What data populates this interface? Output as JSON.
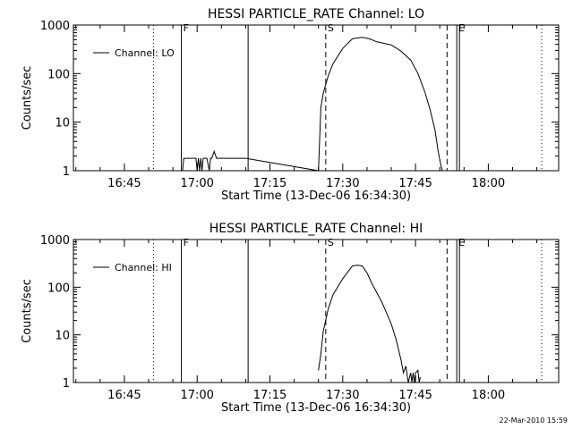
{
  "timestamp": "22-Mar-2010 15:59",
  "chart_data": [
    {
      "type": "line",
      "title": "HESSI PARTICLE_RATE Channel: LO",
      "xlabel": "Start Time (13-Dec-06 16:34:30)",
      "ylabel": "Counts/sec",
      "yscale": "log",
      "ylim": [
        1,
        1000
      ],
      "xlim": [
        "16:34:30",
        "18:14:30"
      ],
      "x_ticks": [
        "16:45",
        "17:00",
        "17:15",
        "17:30",
        "17:45",
        "18:00"
      ],
      "y_ticks": [
        "1",
        "10",
        "100",
        "1000"
      ],
      "legend": "top-left",
      "grid": false,
      "series": [
        {
          "name": "Channel: LO",
          "x": [
            "16:57:00",
            "16:57:15",
            "16:58:00",
            "16:59:00",
            "16:59:45",
            "17:00:00",
            "17:00:15",
            "17:00:30",
            "17:00:45",
            "17:01:00",
            "17:01:15",
            "17:01:30",
            "17:02:00",
            "17:02:30",
            "17:02:45",
            "17:03:00",
            "17:03:30",
            "17:04:00",
            "17:05:00",
            "17:10:00",
            "17:25:00",
            "17:25:30",
            "17:26:00",
            "17:27:00",
            "17:28:00",
            "17:30:00",
            "17:32:00",
            "17:34:00",
            "17:35:30",
            "17:37:00",
            "17:38:30",
            "17:40:00",
            "17:42:00",
            "17:44:00",
            "17:45:30",
            "17:47:00",
            "17:48:00",
            "17:49:00",
            "17:49:40",
            "17:50:10",
            "17:50:30"
          ],
          "values": [
            1,
            1.8,
            1.8,
            1.8,
            1.8,
            1,
            1.8,
            1,
            1.8,
            1,
            1.8,
            1.8,
            1.8,
            1,
            1.8,
            1.8,
            2.5,
            1.8,
            1.8,
            1.8,
            1,
            20,
            40,
            90,
            160,
            330,
            520,
            560,
            520,
            450,
            420,
            390,
            290,
            190,
            100,
            40,
            18,
            7,
            2.5,
            1.4,
            1
          ],
          "color": "#000000"
        }
      ],
      "markers": [
        {
          "label": "F",
          "time": "16:56:45",
          "style": "solid"
        },
        {
          "label": "",
          "time": "17:10:30",
          "style": "solid"
        },
        {
          "label": "",
          "time": "16:51:00",
          "style": "dotted"
        },
        {
          "label": "S",
          "time": "17:26:30",
          "style": "dashed"
        },
        {
          "label": "",
          "time": "17:51:30",
          "style": "dashed"
        },
        {
          "label": "E",
          "time": "17:53:30",
          "style": "double"
        },
        {
          "label": "",
          "time": "18:11:00",
          "style": "dotted"
        }
      ]
    },
    {
      "type": "line",
      "title": "HESSI PARTICLE_RATE Channel: HI",
      "xlabel": "Start Time (13-Dec-06 16:34:30)",
      "ylabel": "Counts/sec",
      "yscale": "log",
      "ylim": [
        1,
        1000
      ],
      "xlim": [
        "16:34:30",
        "18:14:30"
      ],
      "x_ticks": [
        "16:45",
        "17:00",
        "17:15",
        "17:30",
        "17:45",
        "18:00"
      ],
      "y_ticks": [
        "1",
        "10",
        "100",
        "1000"
      ],
      "legend": "top-left",
      "grid": false,
      "series": [
        {
          "name": "Channel: HI",
          "x": [
            "17:25:00",
            "17:25:30",
            "17:26:00",
            "17:27:00",
            "17:28:00",
            "17:30:00",
            "17:32:00",
            "17:33:00",
            "17:34:00",
            "17:35:00",
            "17:36:00",
            "17:38:00",
            "17:40:00",
            "17:41:00",
            "17:42:00",
            "17:42:30",
            "17:43:00",
            "17:43:30",
            "17:44:00",
            "17:44:15",
            "17:44:30",
            "17:44:45",
            "17:45:00",
            "17:45:30",
            "17:45:45",
            "17:46:00"
          ],
          "values": [
            1.8,
            4,
            12,
            35,
            70,
            150,
            280,
            290,
            280,
            200,
            120,
            50,
            17,
            8,
            3,
            1.6,
            2.2,
            1,
            1.6,
            1,
            1.6,
            1,
            1.6,
            1.8,
            1,
            1.3
          ],
          "color": "#000000"
        }
      ],
      "markers": [
        {
          "label": "F",
          "time": "16:56:45",
          "style": "solid"
        },
        {
          "label": "",
          "time": "17:10:30",
          "style": "solid"
        },
        {
          "label": "",
          "time": "16:51:00",
          "style": "dotted"
        },
        {
          "label": "S",
          "time": "17:26:30",
          "style": "dashed"
        },
        {
          "label": "",
          "time": "17:51:30",
          "style": "dashed"
        },
        {
          "label": "E",
          "time": "17:53:30",
          "style": "double"
        },
        {
          "label": "",
          "time": "18:11:00",
          "style": "dotted"
        }
      ]
    }
  ]
}
